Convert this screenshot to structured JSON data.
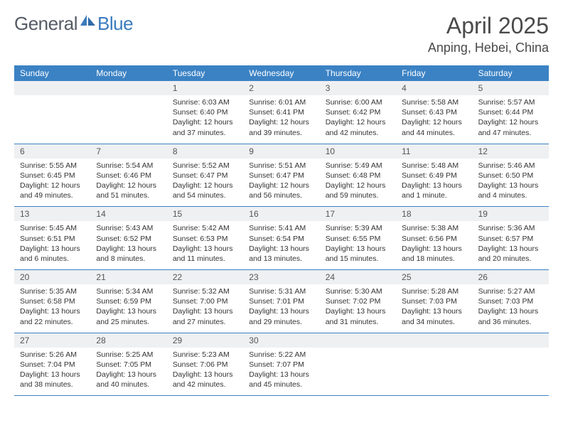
{
  "brand": {
    "part1": "General",
    "part2": "Blue"
  },
  "title": "April 2025",
  "location": "Anping, Hebei, China",
  "colors": {
    "header_bg": "#3b82c4",
    "header_text": "#ffffff",
    "daynum_bg": "#eef0f2",
    "body_text": "#333333",
    "rule": "#3b82c4",
    "logo_gray": "#555c66",
    "logo_blue": "#3b7bbf"
  },
  "weekdays": [
    "Sunday",
    "Monday",
    "Tuesday",
    "Wednesday",
    "Thursday",
    "Friday",
    "Saturday"
  ],
  "weeks": [
    [
      {
        "n": "",
        "sr": "",
        "ss": "",
        "dl": ""
      },
      {
        "n": "",
        "sr": "",
        "ss": "",
        "dl": ""
      },
      {
        "n": "1",
        "sr": "Sunrise: 6:03 AM",
        "ss": "Sunset: 6:40 PM",
        "dl": "Daylight: 12 hours and 37 minutes."
      },
      {
        "n": "2",
        "sr": "Sunrise: 6:01 AM",
        "ss": "Sunset: 6:41 PM",
        "dl": "Daylight: 12 hours and 39 minutes."
      },
      {
        "n": "3",
        "sr": "Sunrise: 6:00 AM",
        "ss": "Sunset: 6:42 PM",
        "dl": "Daylight: 12 hours and 42 minutes."
      },
      {
        "n": "4",
        "sr": "Sunrise: 5:58 AM",
        "ss": "Sunset: 6:43 PM",
        "dl": "Daylight: 12 hours and 44 minutes."
      },
      {
        "n": "5",
        "sr": "Sunrise: 5:57 AM",
        "ss": "Sunset: 6:44 PM",
        "dl": "Daylight: 12 hours and 47 minutes."
      }
    ],
    [
      {
        "n": "6",
        "sr": "Sunrise: 5:55 AM",
        "ss": "Sunset: 6:45 PM",
        "dl": "Daylight: 12 hours and 49 minutes."
      },
      {
        "n": "7",
        "sr": "Sunrise: 5:54 AM",
        "ss": "Sunset: 6:46 PM",
        "dl": "Daylight: 12 hours and 51 minutes."
      },
      {
        "n": "8",
        "sr": "Sunrise: 5:52 AM",
        "ss": "Sunset: 6:47 PM",
        "dl": "Daylight: 12 hours and 54 minutes."
      },
      {
        "n": "9",
        "sr": "Sunrise: 5:51 AM",
        "ss": "Sunset: 6:47 PM",
        "dl": "Daylight: 12 hours and 56 minutes."
      },
      {
        "n": "10",
        "sr": "Sunrise: 5:49 AM",
        "ss": "Sunset: 6:48 PM",
        "dl": "Daylight: 12 hours and 59 minutes."
      },
      {
        "n": "11",
        "sr": "Sunrise: 5:48 AM",
        "ss": "Sunset: 6:49 PM",
        "dl": "Daylight: 13 hours and 1 minute."
      },
      {
        "n": "12",
        "sr": "Sunrise: 5:46 AM",
        "ss": "Sunset: 6:50 PM",
        "dl": "Daylight: 13 hours and 4 minutes."
      }
    ],
    [
      {
        "n": "13",
        "sr": "Sunrise: 5:45 AM",
        "ss": "Sunset: 6:51 PM",
        "dl": "Daylight: 13 hours and 6 minutes."
      },
      {
        "n": "14",
        "sr": "Sunrise: 5:43 AM",
        "ss": "Sunset: 6:52 PM",
        "dl": "Daylight: 13 hours and 8 minutes."
      },
      {
        "n": "15",
        "sr": "Sunrise: 5:42 AM",
        "ss": "Sunset: 6:53 PM",
        "dl": "Daylight: 13 hours and 11 minutes."
      },
      {
        "n": "16",
        "sr": "Sunrise: 5:41 AM",
        "ss": "Sunset: 6:54 PM",
        "dl": "Daylight: 13 hours and 13 minutes."
      },
      {
        "n": "17",
        "sr": "Sunrise: 5:39 AM",
        "ss": "Sunset: 6:55 PM",
        "dl": "Daylight: 13 hours and 15 minutes."
      },
      {
        "n": "18",
        "sr": "Sunrise: 5:38 AM",
        "ss": "Sunset: 6:56 PM",
        "dl": "Daylight: 13 hours and 18 minutes."
      },
      {
        "n": "19",
        "sr": "Sunrise: 5:36 AM",
        "ss": "Sunset: 6:57 PM",
        "dl": "Daylight: 13 hours and 20 minutes."
      }
    ],
    [
      {
        "n": "20",
        "sr": "Sunrise: 5:35 AM",
        "ss": "Sunset: 6:58 PM",
        "dl": "Daylight: 13 hours and 22 minutes."
      },
      {
        "n": "21",
        "sr": "Sunrise: 5:34 AM",
        "ss": "Sunset: 6:59 PM",
        "dl": "Daylight: 13 hours and 25 minutes."
      },
      {
        "n": "22",
        "sr": "Sunrise: 5:32 AM",
        "ss": "Sunset: 7:00 PM",
        "dl": "Daylight: 13 hours and 27 minutes."
      },
      {
        "n": "23",
        "sr": "Sunrise: 5:31 AM",
        "ss": "Sunset: 7:01 PM",
        "dl": "Daylight: 13 hours and 29 minutes."
      },
      {
        "n": "24",
        "sr": "Sunrise: 5:30 AM",
        "ss": "Sunset: 7:02 PM",
        "dl": "Daylight: 13 hours and 31 minutes."
      },
      {
        "n": "25",
        "sr": "Sunrise: 5:28 AM",
        "ss": "Sunset: 7:03 PM",
        "dl": "Daylight: 13 hours and 34 minutes."
      },
      {
        "n": "26",
        "sr": "Sunrise: 5:27 AM",
        "ss": "Sunset: 7:03 PM",
        "dl": "Daylight: 13 hours and 36 minutes."
      }
    ],
    [
      {
        "n": "27",
        "sr": "Sunrise: 5:26 AM",
        "ss": "Sunset: 7:04 PM",
        "dl": "Daylight: 13 hours and 38 minutes."
      },
      {
        "n": "28",
        "sr": "Sunrise: 5:25 AM",
        "ss": "Sunset: 7:05 PM",
        "dl": "Daylight: 13 hours and 40 minutes."
      },
      {
        "n": "29",
        "sr": "Sunrise: 5:23 AM",
        "ss": "Sunset: 7:06 PM",
        "dl": "Daylight: 13 hours and 42 minutes."
      },
      {
        "n": "30",
        "sr": "Sunrise: 5:22 AM",
        "ss": "Sunset: 7:07 PM",
        "dl": "Daylight: 13 hours and 45 minutes."
      },
      {
        "n": "",
        "sr": "",
        "ss": "",
        "dl": ""
      },
      {
        "n": "",
        "sr": "",
        "ss": "",
        "dl": ""
      },
      {
        "n": "",
        "sr": "",
        "ss": "",
        "dl": ""
      }
    ]
  ]
}
